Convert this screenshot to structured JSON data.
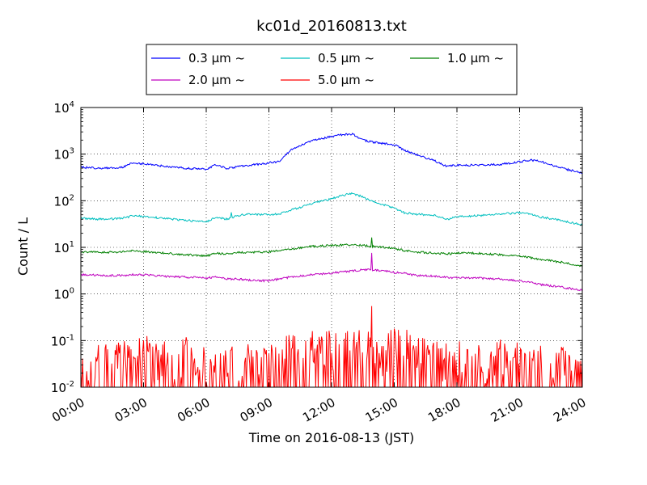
{
  "chart_data": {
    "type": "line",
    "title": "kc01d_20160813.txt",
    "xlabel": "Time on 2016-08-13 (JST)",
    "ylabel": "Count / L",
    "xlim": [
      0,
      24
    ],
    "ylim": [
      0.01,
      10000
    ],
    "yscale": "log",
    "grid": true,
    "legend_placement": "top-center",
    "x_ticks": [
      {
        "value": 0,
        "label": "00:00"
      },
      {
        "value": 3,
        "label": "03:00"
      },
      {
        "value": 6,
        "label": "06:00"
      },
      {
        "value": 9,
        "label": "09:00"
      },
      {
        "value": 12,
        "label": "12:00"
      },
      {
        "value": 15,
        "label": "15:00"
      },
      {
        "value": 18,
        "label": "18:00"
      },
      {
        "value": 21,
        "label": "21:00"
      },
      {
        "value": 24,
        "label": "24:00"
      }
    ],
    "y_ticks": [
      {
        "value": 0.01,
        "base": "10",
        "exp": "-2"
      },
      {
        "value": 0.1,
        "base": "10",
        "exp": "-1"
      },
      {
        "value": 1,
        "base": "10",
        "exp": "0"
      },
      {
        "value": 10,
        "base": "10",
        "exp": "1"
      },
      {
        "value": 100,
        "base": "10",
        "exp": "2"
      },
      {
        "value": 1000,
        "base": "10",
        "exp": "3"
      },
      {
        "value": 10000,
        "base": "10",
        "exp": "4"
      }
    ],
    "series": [
      {
        "name": "0.3 μm ~",
        "color": "#0000ff",
        "x": [
          0,
          1,
          2,
          2.5,
          3,
          4,
          5,
          6,
          6.5,
          7,
          7.5,
          8,
          9,
          9.5,
          10,
          11,
          12,
          12.5,
          13,
          13.5,
          14,
          15,
          15.5,
          16,
          17,
          17.5,
          18,
          19,
          20,
          21,
          21.5,
          22,
          23,
          24
        ],
        "y": [
          520,
          500,
          520,
          650,
          620,
          550,
          500,
          470,
          600,
          490,
          540,
          570,
          650,
          700,
          1200,
          1900,
          2400,
          2600,
          2700,
          2000,
          1800,
          1600,
          1200,
          1000,
          700,
          550,
          580,
          580,
          600,
          680,
          750,
          700,
          500,
          400
        ]
      },
      {
        "name": "0.5 μm ~",
        "color": "#00bfbf",
        "x": [
          0,
          1,
          2,
          2.5,
          3,
          4,
          5,
          6,
          6.5,
          7,
          7.5,
          8,
          9,
          9.5,
          10,
          11,
          12,
          12.5,
          13,
          13.5,
          14,
          15,
          15.5,
          16,
          17,
          17.5,
          18,
          19,
          20,
          21,
          21.5,
          22,
          23,
          24
        ],
        "y": [
          42,
          40,
          42,
          48,
          46,
          42,
          38,
          35,
          45,
          40,
          48,
          52,
          50,
          52,
          62,
          85,
          110,
          130,
          145,
          120,
          95,
          70,
          55,
          52,
          48,
          40,
          45,
          48,
          52,
          55,
          52,
          45,
          38,
          30
        ]
      },
      {
        "name": "1.0 μm ~",
        "color": "#008000",
        "x": [
          0,
          1,
          2,
          2.5,
          3,
          4,
          5,
          6,
          6.5,
          7,
          7.5,
          8,
          9,
          9.5,
          10,
          11,
          12,
          12.5,
          13,
          13.5,
          14,
          15,
          15.5,
          16,
          17,
          17.5,
          18,
          19,
          20,
          21,
          21.5,
          22,
          23,
          24
        ],
        "y": [
          8,
          7.8,
          8,
          8.5,
          8.2,
          7.5,
          7,
          6.5,
          7.5,
          7.2,
          7.8,
          7.8,
          8,
          8.5,
          9,
          10.5,
          11,
          11.2,
          11.5,
          11,
          10.5,
          9.5,
          8.5,
          8,
          7.5,
          7.2,
          7.5,
          7.5,
          7,
          6.5,
          6,
          5.5,
          4.8,
          4
        ]
      },
      {
        "name": "2.0 μm ~",
        "color": "#bf00bf",
        "x": [
          0,
          1,
          2,
          2.5,
          3,
          4,
          5,
          6,
          6.5,
          7,
          7.5,
          8,
          9,
          9.5,
          10,
          11,
          12,
          12.5,
          13,
          13.5,
          14,
          15,
          15.5,
          16,
          17,
          17.5,
          18,
          19,
          20,
          21,
          21.5,
          22,
          23,
          24
        ],
        "y": [
          2.6,
          2.5,
          2.5,
          2.6,
          2.6,
          2.4,
          2.3,
          2.2,
          2.3,
          2.1,
          2.1,
          2.0,
          1.9,
          2.1,
          2.3,
          2.6,
          2.8,
          3.0,
          3.1,
          3.3,
          3.3,
          2.9,
          2.8,
          2.5,
          2.4,
          2.3,
          2.2,
          2.2,
          2.1,
          1.9,
          1.8,
          1.6,
          1.4,
          1.2
        ]
      },
      {
        "name": "5.0 μm ~",
        "color": "#ff0000",
        "x": [
          0,
          0.5,
          1,
          1.5,
          2,
          2.5,
          3,
          3.5,
          4,
          4.5,
          5,
          5.5,
          6,
          6.5,
          7,
          7.5,
          8,
          8.5,
          9,
          9.5,
          10,
          10.5,
          11,
          11.5,
          12,
          12.5,
          13,
          13.5,
          14,
          14.5,
          15,
          15.5,
          16,
          16.5,
          17,
          17.5,
          18,
          18.5,
          19,
          19.5,
          20,
          20.5,
          21,
          21.5,
          22,
          22.5,
          23,
          23.5,
          24
        ],
        "y": [
          0.04,
          0.02,
          0.05,
          0.03,
          0.06,
          0.03,
          0.08,
          0.04,
          0.05,
          0.03,
          0.07,
          0.02,
          0.05,
          0.03,
          0.06,
          0.02,
          0.04,
          0.03,
          0.05,
          0.04,
          0.07,
          0.05,
          0.08,
          0.06,
          0.09,
          0.07,
          0.08,
          0.09,
          0.06,
          0.05,
          0.1,
          0.06,
          0.07,
          0.05,
          0.08,
          0.04,
          0.06,
          0.03,
          0.05,
          0.04,
          0.06,
          0.03,
          0.05,
          0.03,
          0.04,
          0.03,
          0.04,
          0.02,
          0.02
        ],
        "peaks": [
          {
            "x": 13.92,
            "y": 0.55
          },
          {
            "x": 15.0,
            "y": 0.18
          },
          {
            "x": 15.6,
            "y": 0.17
          },
          {
            "x": 11.4,
            "y": 0.12
          },
          {
            "x": 12.6,
            "y": 0.11
          }
        ]
      }
    ]
  }
}
